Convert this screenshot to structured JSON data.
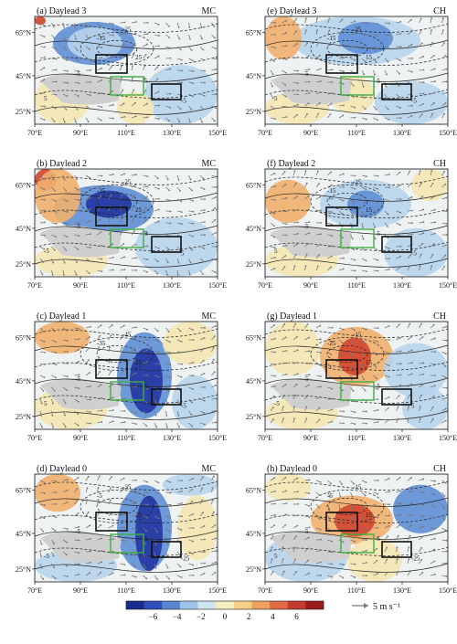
{
  "panels": [
    {
      "title": "(a) Daylead 3",
      "tag": "MC",
      "x_ticks": [
        "70°E",
        "90°E",
        "110°E",
        "130°E",
        "150°E"
      ],
      "y_ticks": [
        "65°N",
        "45°N",
        "25°N"
      ],
      "contour_labels": [
        "-15",
        "-25",
        "25",
        "-5",
        "5",
        "-5",
        "5"
      ]
    },
    {
      "title": "(b) Daylead 2",
      "tag": "MC",
      "x_ticks": [
        "70°E",
        "90°E",
        "110°E",
        "130°E",
        "150°E"
      ],
      "y_ticks": [
        "65°N",
        "45°N",
        "25°N"
      ],
      "contour_labels": [
        "-35",
        "-25",
        "25",
        "-5",
        "5",
        "5",
        "-5"
      ]
    },
    {
      "title": "(c) Daylead 1",
      "tag": "MC",
      "x_ticks": [
        "70°E",
        "90°E",
        "110°E",
        "130°E",
        "150°E"
      ],
      "y_ticks": [
        "65°N",
        "45°N",
        "25°N"
      ],
      "contour_labels": [
        "-35",
        "-45",
        "25",
        "-5",
        "5",
        "-5",
        "5"
      ]
    },
    {
      "title": "(d) Daylead 0",
      "tag": "MC",
      "x_ticks": [
        "70°E",
        "90°E",
        "110°E",
        "130°E",
        "150°E"
      ],
      "y_ticks": [
        "65°N",
        "45°N",
        "25°N"
      ],
      "contour_labels": [
        "-5",
        "-35",
        "25",
        "-5",
        "5",
        "-25",
        "-5"
      ]
    },
    {
      "title": "(e) Daylead 3",
      "tag": "CH",
      "x_ticks": [
        "70°E",
        "90°E",
        "110°E",
        "130°E",
        "150°E"
      ],
      "y_ticks": [
        "65°N",
        "45°N",
        "25°N"
      ],
      "contour_labels": [
        "-15",
        "-25",
        "15",
        "5",
        "-5",
        "-5",
        "5"
      ]
    },
    {
      "title": "(f) Daylead 2",
      "tag": "CH",
      "x_ticks": [
        "70°E",
        "90°E",
        "110°E",
        "130°E",
        "150°E"
      ],
      "y_ticks": [
        "65°N",
        "45°N",
        "25°N"
      ],
      "contour_labels": [
        "-15",
        "-25",
        "15",
        "5",
        "-5",
        "-5",
        "5"
      ]
    },
    {
      "title": "(g) Daylead 1",
      "tag": "CH",
      "x_ticks": [
        "70°E",
        "90°E",
        "110°E",
        "130°E",
        "150°E"
      ],
      "y_ticks": [
        "65°N",
        "45°N",
        "25°N"
      ],
      "contour_labels": [
        "-25",
        "-15",
        "15",
        "5",
        "-5",
        "5",
        "-5"
      ]
    },
    {
      "title": "(h) Daylead 0",
      "tag": "CH",
      "x_ticks": [
        "70°E",
        "90°E",
        "110°E",
        "130°E",
        "150°E"
      ],
      "y_ticks": [
        "65°N",
        "45°N",
        "25°N"
      ],
      "contour_labels": [
        "-5",
        "-15",
        "15",
        "5",
        "-5",
        "-25",
        "5"
      ]
    }
  ],
  "colorbar": {
    "ticks": [
      "−6",
      "−4",
      "−2",
      "0",
      "2",
      "4",
      "6"
    ],
    "colors": [
      "#1a2a8c",
      "#2f4fb8",
      "#5a86d0",
      "#9fc3e6",
      "#cfe3f0",
      "#f5ecc0",
      "#f7cf8a",
      "#f0a060",
      "#e06a44",
      "#c43a2c",
      "#9c1c1c"
    ]
  },
  "reference_vector": {
    "label": "5 m s⁻¹"
  },
  "colors": {
    "blue_deep": "#2336a0",
    "blue_mid": "#5f8fd6",
    "blue_light": "#b7d4ec",
    "yellow": "#f4e7b2",
    "orange": "#f1b06d",
    "red": "#d2452f",
    "plateau": "#cfcfcf",
    "box_black": "#111111",
    "box_green": "#3fae3f",
    "vector": "#777777"
  }
}
